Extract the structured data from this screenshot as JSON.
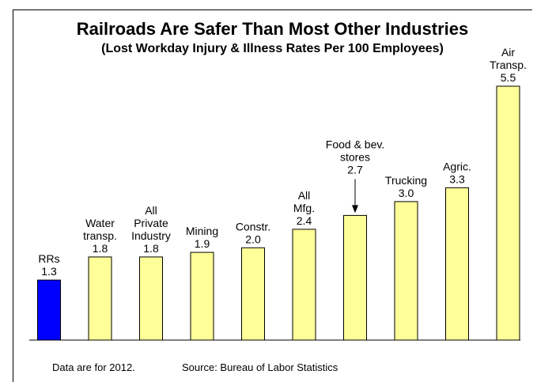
{
  "chart_data": {
    "type": "bar",
    "title": "Railroads Are Safer Than Most Other Industries",
    "subtitle": "(Lost Workday Injury & Illness Rates Per 100 Employees)",
    "categories": [
      {
        "label_lines": [
          "RRs"
        ],
        "value": 1.3,
        "value_label": "1.3",
        "color": "#0000ff"
      },
      {
        "label_lines": [
          "Water",
          "transp."
        ],
        "value": 1.8,
        "value_label": "1.8",
        "color": "#ffff99"
      },
      {
        "label_lines": [
          "All",
          "Private",
          "Industry"
        ],
        "value": 1.8,
        "value_label": "1.8",
        "color": "#ffff99"
      },
      {
        "label_lines": [
          "Mining"
        ],
        "value": 1.9,
        "value_label": "1.9",
        "color": "#ffff99"
      },
      {
        "label_lines": [
          "Constr."
        ],
        "value": 2.0,
        "value_label": "2.0",
        "color": "#ffff99"
      },
      {
        "label_lines": [
          "All",
          "Mfg."
        ],
        "value": 2.4,
        "value_label": "2.4",
        "color": "#ffff99"
      },
      {
        "label_lines": [
          "Food & bev.",
          "stores"
        ],
        "value": 2.7,
        "value_label": "2.7",
        "color": "#ffff99",
        "arrow": true
      },
      {
        "label_lines": [
          "Trucking"
        ],
        "value": 3.0,
        "value_label": "3.0",
        "color": "#ffff99"
      },
      {
        "label_lines": [
          "Agric."
        ],
        "value": 3.3,
        "value_label": "3.3",
        "color": "#ffff99"
      },
      {
        "label_lines": [
          "Air",
          "Transp."
        ],
        "value": 5.5,
        "value_label": "5.5",
        "color": "#ffff99"
      }
    ],
    "ylim": [
      0,
      5.5
    ],
    "grid": false,
    "legend": "none"
  },
  "footer": {
    "note": "Data are for 2012.",
    "source": "Source:  Bureau of Labor Statistics"
  }
}
